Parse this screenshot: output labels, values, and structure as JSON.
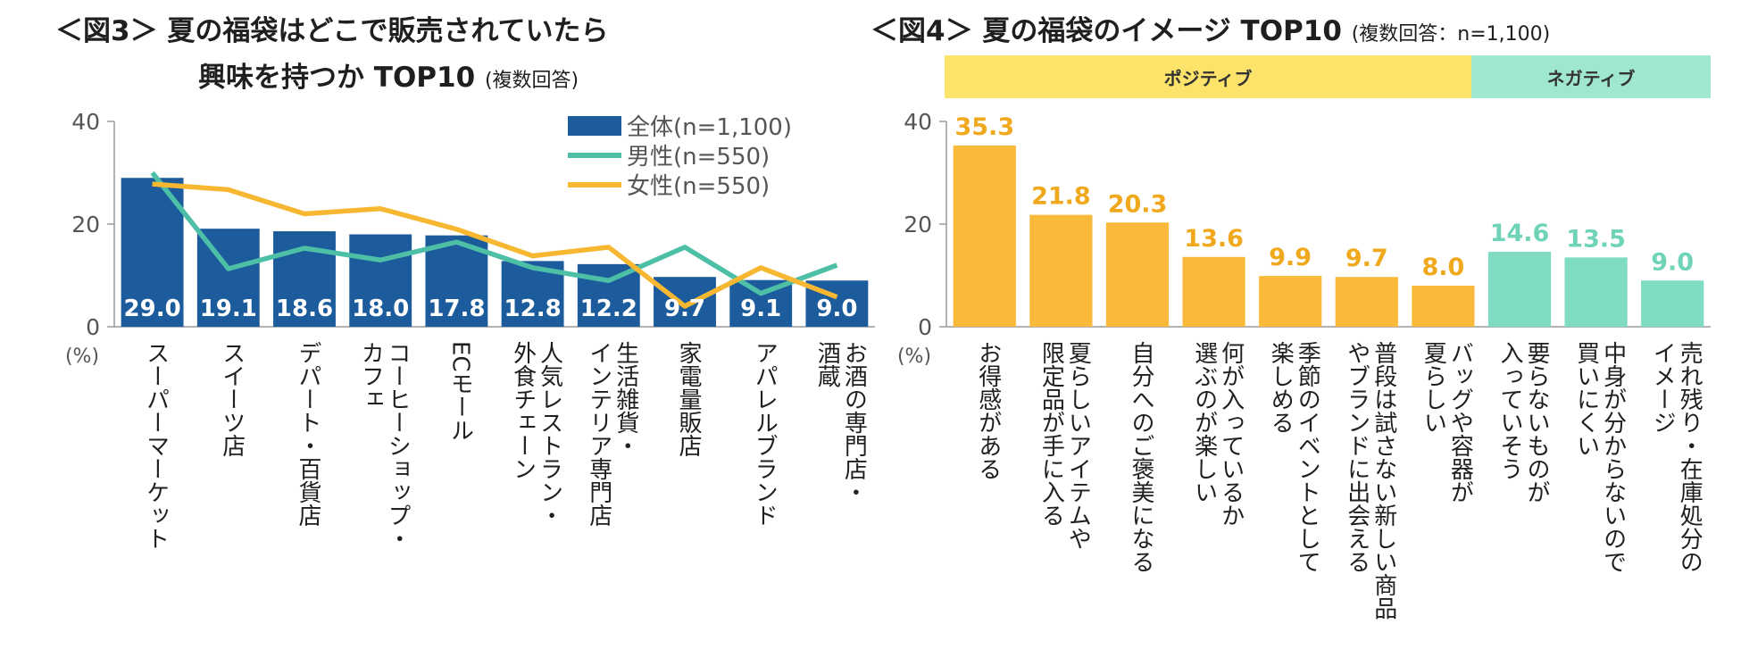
{
  "figure3": {
    "title_prefix": "＜図3＞",
    "title_line1": "夏の福袋はどこで販売されていたら",
    "title_line2": "興味を持つか TOP10",
    "title_note": "(複数回答)",
    "unit_label": "(%)",
    "legend": [
      "全体(n=1,100)",
      "男性(n=550)",
      "女性(n=550)"
    ]
  },
  "figure4": {
    "title_prefix": "＜図4＞",
    "title": "夏の福袋のイメージ TOP10",
    "title_note": "(複数回答：n=1,100)",
    "unit_label": "(%)",
    "group_positive": "ポジティブ",
    "group_negative": "ネガティブ"
  },
  "colors": {
    "bar_total": "#1c5c9c",
    "line_male": "#4dbfa6",
    "line_female": "#f7b731",
    "bar_positive": "#f9b93b",
    "bar_negative": "#7fdcc2",
    "label_positive": "#f0a91d",
    "label_negative": "#6fd3b8",
    "band_positive": "#fde36a",
    "band_negative": "#9fe7cf",
    "axis": "#9a9a9a",
    "text": "#1f1f1f"
  },
  "chart_data": [
    {
      "type": "bar",
      "categories": [
        "スーパーマーケット",
        "スイーツ店",
        "デパート・百貨店",
        "コーヒーショップ・カフェ",
        "ECモール",
        "人気レストラン・外食チェーン",
        "生活雑貨・インテリア専門店",
        "家電量販店",
        "アパレルブランド",
        "お酒の専門店・酒蔵"
      ],
      "category_lines": [
        [
          "スーパーマーケット"
        ],
        [
          "スイーツ店"
        ],
        [
          "デパート・百貨店"
        ],
        [
          "コーヒーショップ・",
          "カフェ"
        ],
        [
          "ECモール"
        ],
        [
          "人気レストラン・",
          "外食チェーン"
        ],
        [
          "生活雑貨・",
          "インテリア専門店"
        ],
        [
          "家電量販店"
        ],
        [
          "アパレルブランド"
        ],
        [
          "お酒の専門店・",
          "酒蔵"
        ]
      ],
      "series": [
        {
          "name": "全体(n=1,100)",
          "kind": "bar",
          "values": [
            29.0,
            19.1,
            18.6,
            18.0,
            17.8,
            12.8,
            12.2,
            9.7,
            9.1,
            9.0
          ],
          "labels": [
            "29.0",
            "19.1",
            "18.6",
            "18.0",
            "17.8",
            "12.8",
            "12.2",
            "9.7",
            "9.1",
            "9.0"
          ]
        },
        {
          "name": "男性(n=550)",
          "kind": "line",
          "values": [
            30.0,
            11.3,
            15.3,
            13.0,
            16.5,
            11.5,
            9.0,
            15.5,
            6.5,
            12.0
          ]
        },
        {
          "name": "女性(n=550)",
          "kind": "line",
          "values": [
            27.8,
            26.7,
            22.0,
            23.0,
            19.0,
            13.8,
            15.5,
            4.0,
            11.5,
            5.8
          ]
        }
      ],
      "ylim": [
        0,
        40
      ],
      "yticks": [
        "0",
        "20",
        "40"
      ],
      "ylabel": "(%)",
      "legend_position": "top-right"
    },
    {
      "type": "bar",
      "categories": [
        "お得感がある",
        "夏らしいアイテムや限定品が手に入る",
        "自分へのご褒美になる",
        "何が入っているか選ぶのが楽しい",
        "季節のイベントとして楽しめる",
        "普段は試さない新しい商品やブランドに出会える",
        "バッグや容器が夏らしい",
        "要らないものが入っていそう",
        "中身が分からないので買いにくい",
        "売れ残り・在庫処分のイメージ"
      ],
      "category_lines": [
        [
          "お得感がある"
        ],
        [
          "夏らしいアイテムや",
          "限定品が手に入る"
        ],
        [
          "自分へのご褒美になる"
        ],
        [
          "何が入っているか",
          "選ぶのが楽しい"
        ],
        [
          "季節のイベントとして",
          "楽しめる"
        ],
        [
          "普段は試さない新しい商品",
          "やブランドに出会える"
        ],
        [
          "バッグや容器が",
          "夏らしい"
        ],
        [
          "要らないものが",
          "入っていそう"
        ],
        [
          "中身が分からないので",
          "買いにくい"
        ],
        [
          "売れ残り・在庫処分の",
          "イメージ"
        ]
      ],
      "values": [
        35.3,
        21.8,
        20.3,
        13.6,
        9.9,
        9.7,
        8.0,
        14.6,
        13.5,
        9.0
      ],
      "labels": [
        "35.3",
        "21.8",
        "20.3",
        "13.6",
        "9.9",
        "9.7",
        "8.0",
        "14.6",
        "13.5",
        "9.0"
      ],
      "groups": [
        "positive",
        "positive",
        "positive",
        "positive",
        "positive",
        "positive",
        "positive",
        "negative",
        "negative",
        "negative"
      ],
      "ylim": [
        0,
        40
      ],
      "yticks": [
        "0",
        "20",
        "40"
      ],
      "ylabel": "(%)"
    }
  ]
}
